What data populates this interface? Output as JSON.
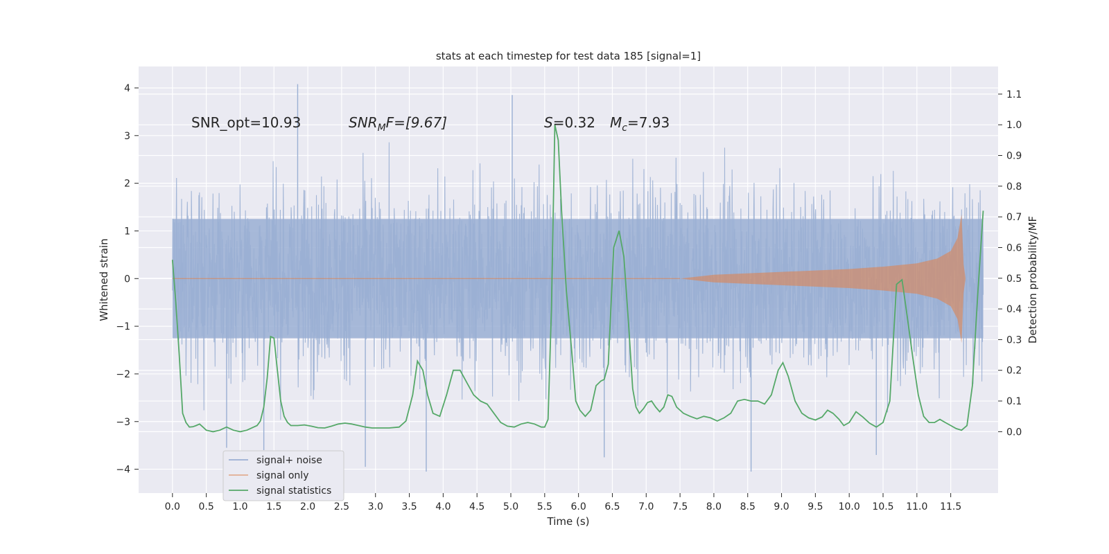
{
  "chart_data": {
    "type": "line",
    "title": "stats at each timestep for test data 185 [signal=1]",
    "xlabel": "Time (s)",
    "ylabel_left": "Whitened strain",
    "ylabel_right": "Detection probability/MF",
    "xlim": [
      -0.5,
      12.2
    ],
    "ylim_left": [
      -4.5,
      4.45
    ],
    "ylim_right": [
      -0.2,
      1.19
    ],
    "x_ticks": [
      0.0,
      0.5,
      1.0,
      1.5,
      2.0,
      2.5,
      3.0,
      3.5,
      4.0,
      4.5,
      5.0,
      5.5,
      6.0,
      6.5,
      7.0,
      7.5,
      8.0,
      8.5,
      9.0,
      9.5,
      10.0,
      10.5,
      11.0,
      11.5
    ],
    "x_tick_labels": [
      "0.0",
      "0.5",
      "1.0",
      "1.5",
      "2.0",
      "2.5",
      "3.0",
      "3.5",
      "4.0",
      "4.5",
      "5.0",
      "5.5",
      "6.0",
      "6.5",
      "7.0",
      "7.5",
      "8.0",
      "8.5",
      "9.0",
      "9.5",
      "10.0",
      "10.5",
      "11.0",
      "11.5"
    ],
    "y_left_ticks": [
      -4,
      -3,
      -2,
      -1,
      0,
      1,
      2,
      3,
      4
    ],
    "y_left_tick_labels": [
      "−4",
      "−3",
      "−2",
      "−1",
      "0",
      "1",
      "2",
      "3",
      "4"
    ],
    "y_right_ticks": [
      0.0,
      0.1,
      0.2,
      0.3,
      0.4,
      0.5,
      0.6,
      0.7,
      0.8,
      0.9,
      1.0,
      1.1
    ],
    "y_right_tick_labels": [
      "0.0",
      "0.1",
      "0.2",
      "0.3",
      "0.4",
      "0.5",
      "0.6",
      "0.7",
      "0.8",
      "0.9",
      "1.0",
      "1.1"
    ],
    "grid": true,
    "legend_position": "lower-left",
    "annotations": {
      "snr_opt": "SNR_opt=10.93",
      "snr_mf_label": "SNR",
      "snr_mf_sub": "M",
      "snr_mf_rest": "F=[9.67]",
      "s_label": "S",
      "s_value": "=0.32",
      "mc_label": "M",
      "mc_sub": "c",
      "mc_value": "=7.93"
    },
    "series": [
      {
        "name": "signal+ noise",
        "color": "#9aafd3",
        "axis": "left",
        "kind": "noise",
        "t_range": [
          0.0,
          11.98
        ],
        "std": 1.0,
        "typical_range": [
          -3.2,
          3.4
        ],
        "extremes": [
          {
            "x": 1.85,
            "y": 4.08
          },
          {
            "x": 5.02,
            "y": 3.85
          },
          {
            "x": 3.75,
            "y": -4.05
          },
          {
            "x": 2.85,
            "y": -3.95
          },
          {
            "x": 8.55,
            "y": -4.05
          },
          {
            "x": 6.38,
            "y": -3.75
          },
          {
            "x": 0.8,
            "y": -3.55
          },
          {
            "x": 1.35,
            "y": -3.6
          },
          {
            "x": 10.4,
            "y": -3.7
          }
        ]
      },
      {
        "name": "signal only",
        "color": "#dd8452",
        "axis": "left",
        "kind": "chirp",
        "envelope": [
          {
            "x": 7.5,
            "y": 0.0
          },
          {
            "x": 8.0,
            "y": 0.08
          },
          {
            "x": 9.0,
            "y": 0.14
          },
          {
            "x": 10.0,
            "y": 0.2
          },
          {
            "x": 10.5,
            "y": 0.25
          },
          {
            "x": 11.0,
            "y": 0.32
          },
          {
            "x": 11.3,
            "y": 0.42
          },
          {
            "x": 11.5,
            "y": 0.58
          },
          {
            "x": 11.6,
            "y": 0.85
          },
          {
            "x": 11.66,
            "y": 1.35
          },
          {
            "x": 11.69,
            "y": 0.3
          },
          {
            "x": 11.72,
            "y": 0.0
          }
        ]
      },
      {
        "name": "signal statistics",
        "color": "#55a868",
        "axis": "right",
        "kind": "line",
        "points": [
          {
            "x": 0.0,
            "y": 0.56
          },
          {
            "x": 0.05,
            "y": 0.42
          },
          {
            "x": 0.1,
            "y": 0.25
          },
          {
            "x": 0.15,
            "y": 0.06
          },
          {
            "x": 0.2,
            "y": 0.03
          },
          {
            "x": 0.25,
            "y": 0.015
          },
          {
            "x": 0.3,
            "y": 0.016
          },
          {
            "x": 0.35,
            "y": 0.02
          },
          {
            "x": 0.4,
            "y": 0.025
          },
          {
            "x": 0.45,
            "y": 0.015
          },
          {
            "x": 0.5,
            "y": 0.005
          },
          {
            "x": 0.6,
            "y": 0.0
          },
          {
            "x": 0.7,
            "y": 0.005
          },
          {
            "x": 0.75,
            "y": 0.01
          },
          {
            "x": 0.8,
            "y": 0.015
          },
          {
            "x": 0.85,
            "y": 0.01
          },
          {
            "x": 0.9,
            "y": 0.005
          },
          {
            "x": 1.0,
            "y": 0.0
          },
          {
            "x": 1.1,
            "y": 0.005
          },
          {
            "x": 1.15,
            "y": 0.01
          },
          {
            "x": 1.2,
            "y": 0.015
          },
          {
            "x": 1.25,
            "y": 0.02
          },
          {
            "x": 1.3,
            "y": 0.035
          },
          {
            "x": 1.35,
            "y": 0.08
          },
          {
            "x": 1.4,
            "y": 0.175
          },
          {
            "x": 1.45,
            "y": 0.31
          },
          {
            "x": 1.5,
            "y": 0.305
          },
          {
            "x": 1.55,
            "y": 0.2
          },
          {
            "x": 1.6,
            "y": 0.1
          },
          {
            "x": 1.65,
            "y": 0.05
          },
          {
            "x": 1.7,
            "y": 0.03
          },
          {
            "x": 1.75,
            "y": 0.02
          },
          {
            "x": 1.85,
            "y": 0.02
          },
          {
            "x": 1.95,
            "y": 0.022
          },
          {
            "x": 2.05,
            "y": 0.018
          },
          {
            "x": 2.15,
            "y": 0.013
          },
          {
            "x": 2.25,
            "y": 0.012
          },
          {
            "x": 2.35,
            "y": 0.018
          },
          {
            "x": 2.45,
            "y": 0.025
          },
          {
            "x": 2.55,
            "y": 0.028
          },
          {
            "x": 2.65,
            "y": 0.025
          },
          {
            "x": 2.75,
            "y": 0.02
          },
          {
            "x": 2.85,
            "y": 0.015
          },
          {
            "x": 2.95,
            "y": 0.012
          },
          {
            "x": 3.05,
            "y": 0.012
          },
          {
            "x": 3.2,
            "y": 0.012
          },
          {
            "x": 3.35,
            "y": 0.015
          },
          {
            "x": 3.45,
            "y": 0.035
          },
          {
            "x": 3.55,
            "y": 0.12
          },
          {
            "x": 3.62,
            "y": 0.23
          },
          {
            "x": 3.7,
            "y": 0.2
          },
          {
            "x": 3.77,
            "y": 0.12
          },
          {
            "x": 3.85,
            "y": 0.06
          },
          {
            "x": 3.95,
            "y": 0.05
          },
          {
            "x": 4.05,
            "y": 0.12
          },
          {
            "x": 4.15,
            "y": 0.2
          },
          {
            "x": 4.25,
            "y": 0.2
          },
          {
            "x": 4.35,
            "y": 0.16
          },
          {
            "x": 4.45,
            "y": 0.12
          },
          {
            "x": 4.55,
            "y": 0.1
          },
          {
            "x": 4.65,
            "y": 0.09
          },
          {
            "x": 4.75,
            "y": 0.06
          },
          {
            "x": 4.85,
            "y": 0.03
          },
          {
            "x": 4.95,
            "y": 0.018
          },
          {
            "x": 5.05,
            "y": 0.015
          },
          {
            "x": 5.15,
            "y": 0.025
          },
          {
            "x": 5.25,
            "y": 0.03
          },
          {
            "x": 5.35,
            "y": 0.025
          },
          {
            "x": 5.45,
            "y": 0.015
          },
          {
            "x": 5.5,
            "y": 0.015
          },
          {
            "x": 5.55,
            "y": 0.04
          },
          {
            "x": 5.6,
            "y": 0.4
          },
          {
            "x": 5.65,
            "y": 1.0
          },
          {
            "x": 5.7,
            "y": 0.95
          },
          {
            "x": 5.75,
            "y": 0.72
          },
          {
            "x": 5.82,
            "y": 0.46
          },
          {
            "x": 5.9,
            "y": 0.26
          },
          {
            "x": 5.96,
            "y": 0.1
          },
          {
            "x": 6.02,
            "y": 0.07
          },
          {
            "x": 6.1,
            "y": 0.05
          },
          {
            "x": 6.18,
            "y": 0.07
          },
          {
            "x": 6.26,
            "y": 0.15
          },
          {
            "x": 6.33,
            "y": 0.165
          },
          {
            "x": 6.38,
            "y": 0.17
          },
          {
            "x": 6.44,
            "y": 0.22
          },
          {
            "x": 6.52,
            "y": 0.6
          },
          {
            "x": 6.6,
            "y": 0.655
          },
          {
            "x": 6.67,
            "y": 0.57
          },
          {
            "x": 6.74,
            "y": 0.35
          },
          {
            "x": 6.8,
            "y": 0.14
          },
          {
            "x": 6.85,
            "y": 0.08
          },
          {
            "x": 6.9,
            "y": 0.06
          },
          {
            "x": 6.96,
            "y": 0.075
          },
          {
            "x": 7.02,
            "y": 0.095
          },
          {
            "x": 7.08,
            "y": 0.1
          },
          {
            "x": 7.14,
            "y": 0.08
          },
          {
            "x": 7.2,
            "y": 0.065
          },
          {
            "x": 7.26,
            "y": 0.08
          },
          {
            "x": 7.32,
            "y": 0.12
          },
          {
            "x": 7.38,
            "y": 0.115
          },
          {
            "x": 7.45,
            "y": 0.08
          },
          {
            "x": 7.55,
            "y": 0.06
          },
          {
            "x": 7.65,
            "y": 0.05
          },
          {
            "x": 7.75,
            "y": 0.042
          },
          {
            "x": 7.85,
            "y": 0.05
          },
          {
            "x": 7.95,
            "y": 0.045
          },
          {
            "x": 8.05,
            "y": 0.035
          },
          {
            "x": 8.15,
            "y": 0.045
          },
          {
            "x": 8.25,
            "y": 0.06
          },
          {
            "x": 8.35,
            "y": 0.1
          },
          {
            "x": 8.45,
            "y": 0.105
          },
          {
            "x": 8.55,
            "y": 0.1
          },
          {
            "x": 8.65,
            "y": 0.1
          },
          {
            "x": 8.75,
            "y": 0.09
          },
          {
            "x": 8.85,
            "y": 0.12
          },
          {
            "x": 8.95,
            "y": 0.2
          },
          {
            "x": 9.02,
            "y": 0.225
          },
          {
            "x": 9.1,
            "y": 0.18
          },
          {
            "x": 9.2,
            "y": 0.1
          },
          {
            "x": 9.3,
            "y": 0.06
          },
          {
            "x": 9.4,
            "y": 0.045
          },
          {
            "x": 9.5,
            "y": 0.038
          },
          {
            "x": 9.6,
            "y": 0.048
          },
          {
            "x": 9.68,
            "y": 0.07
          },
          {
            "x": 9.76,
            "y": 0.06
          },
          {
            "x": 9.85,
            "y": 0.04
          },
          {
            "x": 9.92,
            "y": 0.02
          },
          {
            "x": 10.0,
            "y": 0.03
          },
          {
            "x": 10.1,
            "y": 0.065
          },
          {
            "x": 10.2,
            "y": 0.048
          },
          {
            "x": 10.3,
            "y": 0.028
          },
          {
            "x": 10.4,
            "y": 0.015
          },
          {
            "x": 10.5,
            "y": 0.03
          },
          {
            "x": 10.6,
            "y": 0.1
          },
          {
            "x": 10.7,
            "y": 0.48
          },
          {
            "x": 10.78,
            "y": 0.495
          },
          {
            "x": 10.86,
            "y": 0.37
          },
          {
            "x": 10.94,
            "y": 0.24
          },
          {
            "x": 11.02,
            "y": 0.12
          },
          {
            "x": 11.1,
            "y": 0.05
          },
          {
            "x": 11.18,
            "y": 0.03
          },
          {
            "x": 11.26,
            "y": 0.03
          },
          {
            "x": 11.34,
            "y": 0.04
          },
          {
            "x": 11.42,
            "y": 0.03
          },
          {
            "x": 11.5,
            "y": 0.02
          },
          {
            "x": 11.58,
            "y": 0.01
          },
          {
            "x": 11.66,
            "y": 0.005
          },
          {
            "x": 11.74,
            "y": 0.02
          },
          {
            "x": 11.82,
            "y": 0.15
          },
          {
            "x": 11.9,
            "y": 0.45
          },
          {
            "x": 11.98,
            "y": 0.72
          }
        ]
      }
    ]
  }
}
